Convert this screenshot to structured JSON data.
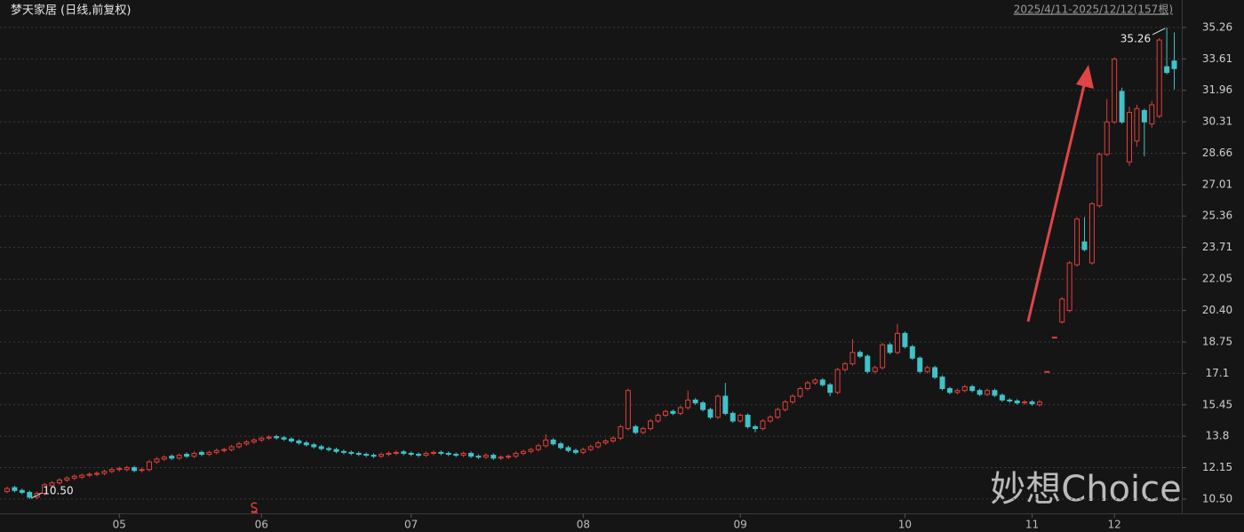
{
  "chart_data": {
    "type": "candlestick",
    "title": "梦天家居 (日线,前复权)",
    "subtitle": "2025/4/11-2025/12/12(157根)",
    "watermark": "妙想Choice",
    "categories": [
      null,
      null,
      null,
      null,
      null,
      null,
      null,
      null,
      null,
      null,
      null,
      null,
      null,
      null,
      null,
      "05",
      null,
      null,
      null,
      null,
      null,
      null,
      null,
      null,
      null,
      null,
      null,
      null,
      null,
      null,
      null,
      null,
      null,
      null,
      "06",
      null,
      null,
      null,
      null,
      null,
      null,
      null,
      null,
      null,
      null,
      null,
      null,
      null,
      null,
      null,
      null,
      null,
      null,
      null,
      "07",
      null,
      null,
      null,
      null,
      null,
      null,
      null,
      null,
      null,
      null,
      null,
      null,
      null,
      null,
      null,
      null,
      null,
      null,
      null,
      null,
      null,
      null,
      "08",
      null,
      null,
      null,
      null,
      null,
      null,
      null,
      null,
      null,
      null,
      null,
      null,
      null,
      null,
      null,
      null,
      null,
      null,
      null,
      null,
      "09",
      null,
      null,
      null,
      null,
      null,
      null,
      null,
      null,
      null,
      null,
      null,
      null,
      null,
      null,
      null,
      null,
      null,
      null,
      null,
      null,
      null,
      "10",
      null,
      null,
      null,
      null,
      null,
      null,
      null,
      null,
      null,
      null,
      null,
      null,
      null,
      null,
      null,
      null,
      "11",
      null,
      null,
      null,
      null,
      null,
      null,
      null,
      null,
      null,
      null,
      "12",
      null,
      null,
      null,
      null,
      null,
      null,
      null,
      null
    ],
    "open": [
      10.9,
      11.1,
      10.95,
      10.85,
      10.6,
      10.8,
      11.2,
      11.35,
      11.5,
      11.6,
      11.65,
      11.75,
      11.8,
      11.85,
      11.95,
      12.05,
      12.05,
      12.15,
      12.0,
      12.05,
      12.45,
      12.6,
      12.75,
      12.65,
      12.85,
      12.75,
      12.95,
      12.85,
      12.95,
      13.05,
      13.1,
      13.25,
      13.4,
      13.5,
      13.6,
      13.7,
      13.78,
      13.72,
      13.65,
      13.55,
      13.45,
      13.35,
      13.25,
      13.15,
      13.1,
      13.0,
      12.95,
      12.9,
      12.85,
      12.8,
      12.75,
      12.85,
      12.9,
      12.98,
      12.9,
      12.85,
      12.8,
      12.9,
      12.95,
      12.9,
      12.85,
      12.8,
      12.9,
      12.75,
      12.7,
      12.8,
      12.65,
      12.7,
      12.75,
      12.9,
      13.0,
      13.1,
      13.3,
      13.6,
      13.4,
      13.2,
      13.05,
      12.95,
      13.1,
      13.25,
      13.45,
      13.55,
      13.7,
      14.2,
      14.3,
      14.0,
      14.2,
      14.6,
      14.9,
      15.1,
      15.0,
      15.3,
      15.7,
      15.55,
      15.2,
      14.8,
      15.9,
      15.0,
      14.6,
      14.9,
      14.3,
      14.2,
      14.6,
      14.8,
      15.2,
      15.6,
      15.9,
      16.3,
      16.6,
      16.75,
      16.5,
      16.1,
      17.3,
      17.6,
      18.2,
      18.0,
      17.2,
      17.4,
      18.6,
      18.2,
      19.2,
      18.5,
      17.9,
      17.2,
      17.4,
      16.9,
      16.3,
      16.1,
      16.2,
      16.4,
      16.2,
      16.0,
      16.2,
      15.95,
      15.7,
      15.65,
      15.55,
      15.6,
      15.45,
      17.2,
      19.0,
      19.8,
      20.4,
      22.8,
      24.0,
      22.9,
      25.9,
      28.6,
      30.3,
      31.9,
      28.2,
      29.3,
      30.9,
      30.2,
      30.6,
      33.2,
      33.5
    ],
    "close": [
      11.05,
      10.95,
      10.85,
      10.6,
      10.8,
      11.25,
      11.35,
      11.5,
      11.6,
      11.7,
      11.75,
      11.8,
      11.85,
      11.95,
      12.05,
      12.1,
      12.15,
      12.0,
      12.05,
      12.45,
      12.6,
      12.7,
      12.65,
      12.8,
      12.75,
      12.9,
      12.85,
      12.95,
      13.05,
      13.1,
      13.25,
      13.4,
      13.5,
      13.6,
      13.7,
      13.75,
      13.72,
      13.65,
      13.55,
      13.45,
      13.35,
      13.25,
      13.15,
      13.1,
      13.0,
      12.95,
      12.9,
      12.85,
      12.8,
      12.75,
      12.85,
      12.9,
      12.95,
      12.9,
      12.85,
      12.8,
      12.9,
      12.95,
      12.9,
      12.85,
      12.8,
      12.9,
      12.75,
      12.7,
      12.8,
      12.65,
      12.7,
      12.75,
      12.9,
      13.0,
      13.1,
      13.3,
      13.6,
      13.4,
      13.2,
      13.05,
      12.95,
      13.1,
      13.25,
      13.45,
      13.55,
      13.7,
      14.3,
      16.2,
      14.0,
      14.2,
      14.6,
      14.9,
      15.1,
      15.0,
      15.3,
      15.7,
      15.55,
      15.2,
      14.8,
      15.9,
      15.0,
      14.6,
      14.9,
      14.3,
      14.2,
      14.6,
      14.8,
      15.2,
      15.6,
      15.9,
      16.3,
      16.6,
      16.75,
      16.5,
      16.1,
      17.3,
      17.6,
      18.2,
      18.0,
      17.2,
      17.4,
      18.6,
      18.2,
      19.2,
      18.5,
      17.9,
      17.2,
      17.4,
      16.9,
      16.3,
      16.1,
      16.2,
      16.4,
      16.2,
      16.0,
      16.2,
      15.95,
      15.7,
      15.65,
      15.55,
      15.6,
      15.5,
      15.6,
      17.2,
      19.0,
      21.0,
      22.9,
      25.2,
      23.6,
      26.0,
      28.6,
      30.3,
      33.6,
      30.3,
      30.8,
      31.0,
      30.3,
      31.2,
      34.6,
      32.9,
      33.1
    ],
    "high": [
      11.15,
      11.2,
      11.05,
      10.95,
      10.9,
      11.35,
      11.45,
      11.6,
      11.7,
      11.8,
      11.85,
      11.9,
      11.95,
      12.05,
      12.15,
      12.2,
      12.25,
      12.25,
      12.15,
      12.55,
      12.7,
      12.8,
      12.85,
      12.9,
      12.95,
      13.0,
      13.05,
      13.05,
      13.15,
      13.2,
      13.35,
      13.5,
      13.6,
      13.7,
      13.8,
      13.85,
      13.88,
      13.82,
      13.75,
      13.65,
      13.55,
      13.45,
      13.35,
      13.25,
      13.2,
      13.1,
      13.05,
      13.0,
      12.95,
      12.9,
      12.95,
      13.0,
      13.05,
      13.08,
      13.0,
      12.95,
      13.0,
      13.05,
      13.05,
      13.0,
      12.95,
      13.0,
      13.0,
      12.85,
      12.9,
      12.9,
      12.8,
      12.85,
      13.0,
      13.1,
      13.2,
      13.4,
      13.9,
      13.7,
      13.5,
      13.3,
      13.15,
      13.2,
      13.35,
      13.55,
      13.65,
      13.8,
      14.4,
      16.3,
      14.4,
      14.3,
      14.7,
      15.0,
      15.2,
      15.2,
      15.4,
      16.2,
      15.8,
      15.65,
      15.3,
      16.0,
      16.6,
      15.1,
      15.0,
      15.0,
      14.4,
      14.7,
      14.9,
      15.3,
      15.7,
      16.0,
      16.4,
      16.7,
      16.85,
      16.85,
      16.6,
      17.4,
      17.7,
      18.9,
      18.3,
      18.1,
      17.5,
      18.7,
      18.7,
      19.7,
      19.3,
      18.6,
      18.0,
      17.5,
      17.5,
      17.0,
      16.4,
      16.3,
      16.5,
      16.5,
      16.3,
      16.3,
      16.3,
      16.05,
      15.8,
      15.75,
      15.7,
      15.7,
      15.7,
      17.2,
      19.0,
      21.1,
      23.0,
      25.3,
      25.3,
      26.1,
      28.7,
      31.5,
      33.7,
      32.1,
      31.1,
      31.2,
      31.0,
      31.4,
      34.7,
      35.26,
      35.0
    ],
    "low": [
      10.8,
      10.85,
      10.75,
      10.5,
      10.5,
      10.7,
      11.1,
      11.25,
      11.4,
      11.5,
      11.55,
      11.65,
      11.7,
      11.75,
      11.85,
      11.95,
      11.95,
      11.9,
      11.9,
      11.95,
      12.35,
      12.5,
      12.55,
      12.55,
      12.65,
      12.65,
      12.75,
      12.75,
      12.85,
      12.95,
      13.0,
      13.15,
      13.3,
      13.4,
      13.5,
      13.6,
      13.62,
      13.55,
      13.45,
      13.35,
      13.25,
      13.15,
      13.05,
      13.0,
      12.9,
      12.85,
      12.8,
      12.75,
      12.7,
      12.65,
      12.65,
      12.75,
      12.8,
      12.8,
      12.75,
      12.7,
      12.7,
      12.8,
      12.8,
      12.75,
      12.7,
      12.7,
      12.65,
      12.6,
      12.6,
      12.55,
      12.55,
      12.6,
      12.65,
      12.8,
      12.9,
      13.0,
      13.2,
      13.3,
      13.1,
      12.95,
      12.85,
      12.85,
      13.0,
      13.15,
      13.35,
      13.45,
      13.6,
      14.1,
      13.9,
      13.9,
      14.1,
      14.5,
      14.8,
      14.9,
      14.9,
      15.2,
      15.45,
      15.1,
      14.7,
      14.7,
      14.9,
      14.5,
      14.5,
      14.2,
      14.0,
      14.1,
      14.5,
      14.7,
      15.1,
      15.5,
      15.8,
      16.2,
      16.5,
      16.4,
      15.9,
      16.0,
      17.2,
      17.5,
      17.9,
      17.1,
      17.1,
      17.3,
      18.1,
      18.1,
      18.4,
      17.8,
      17.1,
      17.1,
      16.8,
      16.2,
      16.0,
      16.0,
      16.1,
      16.1,
      15.9,
      15.9,
      15.85,
      15.6,
      15.55,
      15.45,
      15.45,
      15.4,
      15.35,
      17.2,
      19.0,
      19.7,
      20.3,
      22.7,
      23.5,
      22.8,
      25.8,
      28.5,
      30.2,
      30.2,
      28.0,
      29.0,
      28.5,
      30.0,
      30.5,
      32.8,
      32.0
    ],
    "up_color": "#e0403a",
    "down_color": "#3fc2c8",
    "extremes": {
      "values": [
        35.26,
        10.5
      ],
      "value_labels": [
        "35.26",
        "10.50"
      ]
    },
    "ylim": [
      9.75,
      35.77
    ],
    "yticks": [
      {
        "value": 10.5,
        "label": "10.50"
      },
      12.15,
      13.8,
      {
        "value": 15.45,
        "label": "15.45"
      },
      17.1,
      18.75,
      {
        "value": 20.4,
        "label": "20.40"
      },
      22.05,
      23.71,
      25.36,
      27.01,
      28.66,
      30.31,
      31.96,
      33.61,
      35.26
    ],
    "grid": true
  }
}
